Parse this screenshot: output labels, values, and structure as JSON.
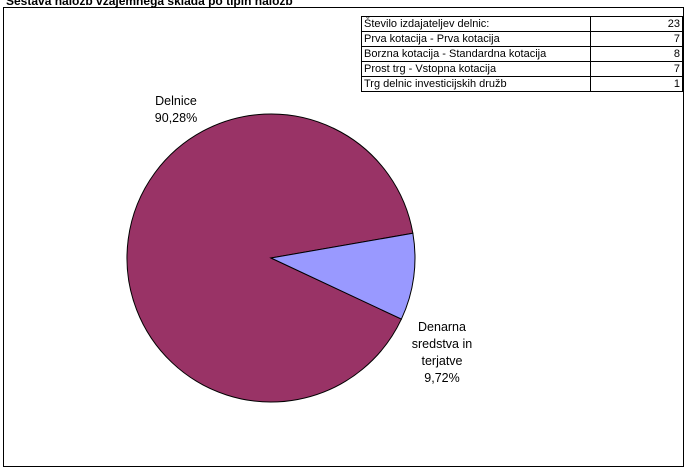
{
  "chart_data": {
    "type": "pie",
    "title": "Sestava naložb vzajemnega sklada po tipih naložb",
    "slices": [
      {
        "name": "Delnice",
        "value": 90.28,
        "label": "Delnice 90,28%",
        "name_text": "Delnice",
        "value_text": "90,28%",
        "color": "#993366"
      },
      {
        "name": "Denarna sredstva in terjatve",
        "value": 9.72,
        "name_text": "Denarna sredstva in terjatve",
        "value_text": "9,72%",
        "color": "#9999ff"
      }
    ]
  },
  "info_table": {
    "rows": [
      {
        "label": "Število izdajateljev delnic:",
        "value": "23"
      },
      {
        "label": "Prva kotacija - Prva kotacija",
        "value": "7"
      },
      {
        "label": "Borzna kotacija - Standardna kotacija",
        "value": "8"
      },
      {
        "label": "Prost trg - Vstopna kotacija",
        "value": "7"
      },
      {
        "label": "Trg delnic investicijskih družb",
        "value": "1"
      }
    ]
  }
}
